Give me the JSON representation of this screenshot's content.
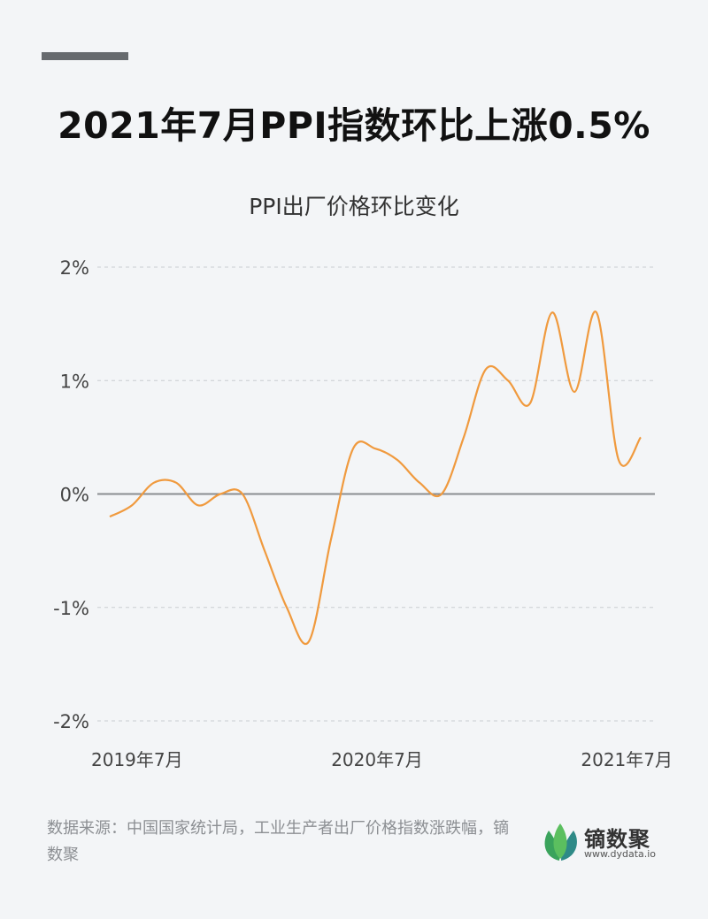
{
  "title": "2021年7月PPI指数环比上涨0.5%",
  "subtitle": "PPI出厂价格环比变化",
  "source": "数据来源：中国国家统计局，工业生产者出厂价格指数涨跌幅，镝数聚",
  "logo": {
    "name": "镝数聚",
    "url": "www.dydata.io"
  },
  "colors": {
    "line": "#f09a3e",
    "grid": "#c9cdd1",
    "zero": "#8a8d90",
    "text": "#444"
  },
  "chart_data": {
    "type": "line",
    "x_ticks": [
      "2019年7月",
      "2020年7月",
      "2021年7月"
    ],
    "y_ticks": [
      "2%",
      "1%",
      "0%",
      "-1%",
      "-2%"
    ],
    "ylim": [
      -2,
      2
    ],
    "grid": true,
    "x": [
      "2019-07",
      "2019-08",
      "2019-09",
      "2019-10",
      "2019-11",
      "2019-12",
      "2020-01",
      "2020-02",
      "2020-03",
      "2020-04",
      "2020-05",
      "2020-06",
      "2020-07",
      "2020-08",
      "2020-09",
      "2020-10",
      "2020-11",
      "2020-12",
      "2021-01",
      "2021-02",
      "2021-03",
      "2021-04",
      "2021-05",
      "2021-06",
      "2021-07"
    ],
    "values": [
      -0.2,
      -0.1,
      0.1,
      0.1,
      -0.1,
      0.0,
      0.0,
      -0.5,
      -1.0,
      -1.3,
      -0.4,
      0.4,
      0.4,
      0.3,
      0.1,
      0.0,
      0.5,
      1.1,
      1.0,
      0.8,
      1.6,
      0.9,
      1.6,
      0.3,
      0.5
    ]
  }
}
